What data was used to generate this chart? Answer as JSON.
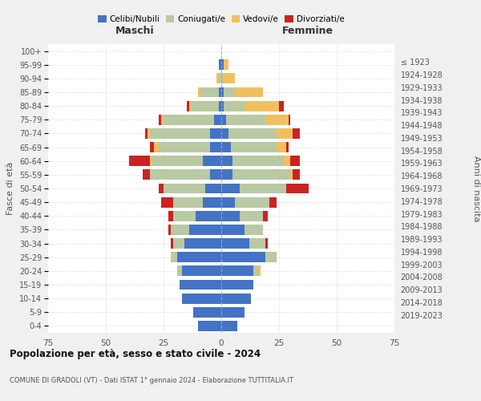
{
  "age_groups": [
    "0-4",
    "5-9",
    "10-14",
    "15-19",
    "20-24",
    "25-29",
    "30-34",
    "35-39",
    "40-44",
    "45-49",
    "50-54",
    "55-59",
    "60-64",
    "65-69",
    "70-74",
    "75-79",
    "80-84",
    "85-89",
    "90-94",
    "95-99",
    "100+"
  ],
  "birth_years": [
    "2019-2023",
    "2014-2018",
    "2009-2013",
    "2004-2008",
    "1999-2003",
    "1994-1998",
    "1989-1993",
    "1984-1988",
    "1979-1983",
    "1974-1978",
    "1969-1973",
    "1964-1968",
    "1959-1963",
    "1954-1958",
    "1949-1953",
    "1944-1948",
    "1939-1943",
    "1934-1938",
    "1929-1933",
    "1924-1928",
    "≤ 1923"
  ],
  "maschi": {
    "celibi": [
      10,
      12,
      17,
      18,
      17,
      19,
      16,
      14,
      11,
      8,
      7,
      5,
      8,
      5,
      5,
      3,
      1,
      1,
      0,
      1,
      0
    ],
    "coniugati": [
      0,
      0,
      0,
      0,
      2,
      3,
      5,
      8,
      10,
      13,
      18,
      26,
      22,
      22,
      26,
      22,
      12,
      8,
      1,
      0,
      0
    ],
    "vedovi": [
      0,
      0,
      0,
      0,
      0,
      0,
      0,
      0,
      0,
      0,
      0,
      0,
      1,
      2,
      1,
      1,
      1,
      1,
      1,
      0,
      0
    ],
    "divorziati": [
      0,
      0,
      0,
      0,
      0,
      0,
      1,
      1,
      2,
      5,
      2,
      3,
      9,
      2,
      1,
      1,
      1,
      0,
      0,
      0,
      0
    ]
  },
  "femmine": {
    "nubili": [
      7,
      10,
      13,
      14,
      14,
      19,
      12,
      10,
      8,
      6,
      8,
      5,
      5,
      4,
      3,
      2,
      1,
      1,
      0,
      1,
      0
    ],
    "coniugate": [
      0,
      0,
      0,
      0,
      2,
      5,
      7,
      8,
      10,
      15,
      20,
      25,
      22,
      20,
      21,
      17,
      9,
      5,
      1,
      0,
      0
    ],
    "vedove": [
      0,
      0,
      0,
      0,
      1,
      0,
      0,
      0,
      0,
      0,
      0,
      1,
      3,
      4,
      7,
      10,
      15,
      12,
      5,
      2,
      0
    ],
    "divorziate": [
      0,
      0,
      0,
      0,
      0,
      0,
      1,
      0,
      2,
      3,
      10,
      3,
      4,
      1,
      3,
      1,
      2,
      0,
      0,
      0,
      0
    ]
  },
  "colors": {
    "celibi": "#4472c4",
    "coniugati": "#b8c9a3",
    "vedovi": "#f0c060",
    "divorziati": "#cc2222"
  },
  "legend_labels": [
    "Celibi/Nubili",
    "Coniugati/e",
    "Vedovi/e",
    "Divorziati/e"
  ],
  "xlabel_left": "Maschi",
  "xlabel_right": "Femmine",
  "ylabel_left": "Fasce di età",
  "ylabel_right": "Anni di nascita",
  "title": "Popolazione per età, sesso e stato civile - 2024",
  "subtitle": "COMUNE DI GRADOLI (VT) - Dati ISTAT 1° gennaio 2024 - Elaborazione TUTTITALIA.IT",
  "xlim": 75,
  "bg_color": "#f0f0f0",
  "plot_bg": "#ffffff",
  "grid_color": "#cccccc"
}
